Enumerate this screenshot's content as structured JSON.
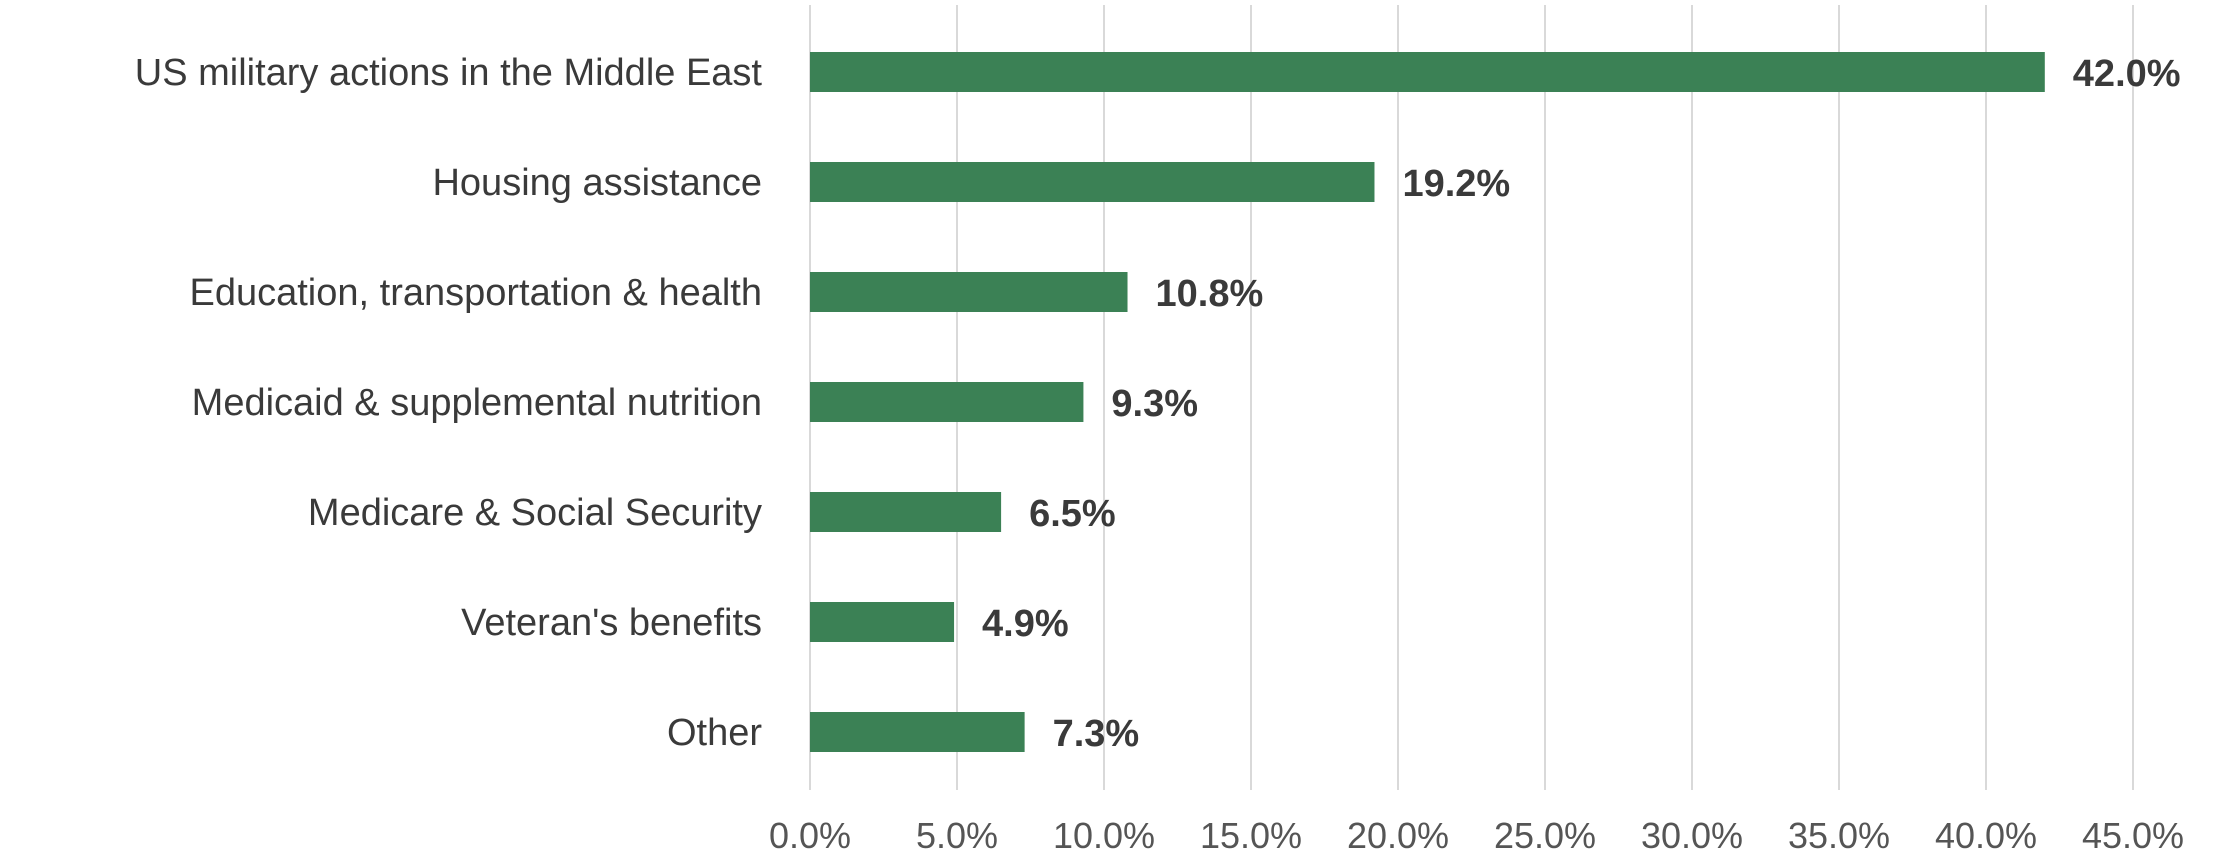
{
  "chart_data": {
    "type": "bar",
    "orientation": "horizontal",
    "categories": [
      "US military actions in the Middle East",
      "Housing assistance",
      "Education, transportation & health",
      "Medicaid & supplemental nutrition",
      "Medicare & Social Security",
      "Veteran's benefits",
      "Other"
    ],
    "values": [
      42.0,
      19.2,
      10.8,
      9.3,
      6.5,
      4.9,
      7.3
    ],
    "value_labels": [
      "42.0%",
      "19.2%",
      "10.8%",
      "9.3%",
      "6.5%",
      "4.9%",
      "7.3%"
    ],
    "x_ticks": [
      0,
      5,
      10,
      15,
      20,
      25,
      30,
      35,
      40,
      45
    ],
    "x_tick_labels": [
      "0.0%",
      "5.0%",
      "10.0%",
      "15.0%",
      "20.0%",
      "25.0%",
      "30.0%",
      "35.0%",
      "40.0%",
      "45.0%"
    ],
    "xlim": [
      0,
      45
    ],
    "title": "",
    "xlabel": "",
    "ylabel": "",
    "grid": "vertical",
    "legend": "none",
    "bar_color": "#3b8155",
    "grid_color": "#d9d9d9",
    "text_color": "#3a3a3a"
  }
}
